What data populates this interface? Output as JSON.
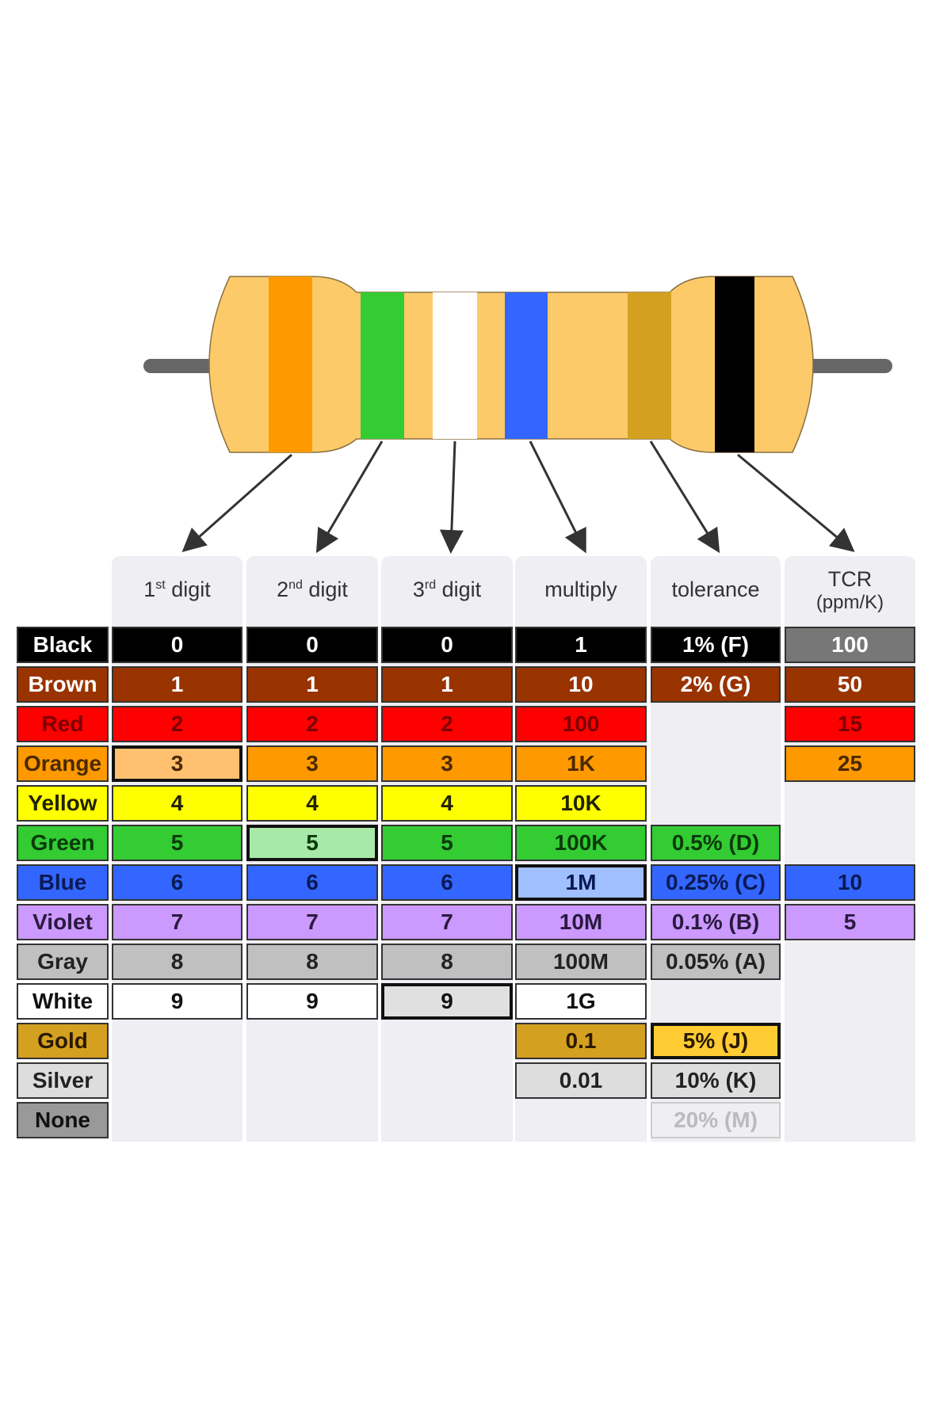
{
  "headers": [
    {
      "main": "1",
      "sup": "st",
      "rest": " digit"
    },
    {
      "main": "2",
      "sup": "nd",
      "rest": " digit"
    },
    {
      "main": "3",
      "sup": "rd",
      "rest": " digit"
    },
    {
      "main": "multiply",
      "sup": "",
      "rest": ""
    },
    {
      "main": "tolerance",
      "sup": "",
      "rest": ""
    },
    {
      "main": "TCR",
      "sup": "",
      "rest": "(ppm/K)"
    }
  ],
  "resistor_bands": [
    "#ff9900",
    "#33cc33",
    "#ffffff",
    "#3366ff",
    "#d4a020",
    "#000000"
  ],
  "rows": [
    {
      "label": "Black",
      "bg": "#000000",
      "fg": "#ffffff",
      "cells": [
        "0",
        "0",
        "0",
        "1",
        "1% (F)",
        "100"
      ]
    },
    {
      "label": "Brown",
      "bg": "#993300",
      "fg": "#ffffff",
      "cells": [
        "1",
        "1",
        "1",
        "10",
        "2% (G)",
        "50"
      ]
    },
    {
      "label": "Red",
      "bg": "#ff0000",
      "fg": "#7a0000",
      "cells": [
        "2",
        "2",
        "2",
        "100",
        null,
        "15"
      ]
    },
    {
      "label": "Orange",
      "bg": "#ff9900",
      "fg": "#4a2a00",
      "cells": [
        "3",
        "3",
        "3",
        "1K",
        null,
        "25"
      ]
    },
    {
      "label": "Yellow",
      "bg": "#ffff00",
      "fg": "#222200",
      "cells": [
        "4",
        "4",
        "4",
        "10K",
        null,
        null
      ]
    },
    {
      "label": "Green",
      "bg": "#33cc33",
      "fg": "#0a3a0a",
      "cells": [
        "5",
        "5",
        "5",
        "100K",
        "0.5% (D)",
        null
      ]
    },
    {
      "label": "Blue",
      "bg": "#3366ff",
      "fg": "#0a1a55",
      "cells": [
        "6",
        "6",
        "6",
        "1M",
        "0.25% (C)",
        "10"
      ]
    },
    {
      "label": "Violet",
      "bg": "#cc99ff",
      "fg": "#2a1a40",
      "cells": [
        "7",
        "7",
        "7",
        "10M",
        "0.1% (B)",
        "5"
      ]
    },
    {
      "label": "Gray",
      "bg": "#c0c0c0",
      "fg": "#222222",
      "cells": [
        "8",
        "8",
        "8",
        "100M",
        "0.05% (A)",
        null
      ]
    },
    {
      "label": "White",
      "bg": "#ffffff",
      "fg": "#111111",
      "cells": [
        "9",
        "9",
        "9",
        "1G",
        null,
        null
      ]
    },
    {
      "label": "Gold",
      "bg": "#d4a020",
      "fg": "#2a1a00",
      "cells": [
        null,
        null,
        null,
        "0.1",
        "5% (J)",
        null
      ]
    },
    {
      "label": "Silver",
      "bg": "#dddddd",
      "fg": "#222222",
      "cells": [
        null,
        null,
        null,
        "0.01",
        "10% (K)",
        null
      ]
    },
    {
      "label": "None",
      "bg": "#999999",
      "fg": "#111111",
      "cells": [
        null,
        null,
        null,
        null,
        "20% (M)",
        null
      ]
    }
  ],
  "highlights": [
    {
      "row": 3,
      "col": 0,
      "bg": "#ffc070"
    },
    {
      "row": 5,
      "col": 1,
      "bg": "#a8e8a8"
    },
    {
      "row": 9,
      "col": 2,
      "bg": "#e0e0e0"
    },
    {
      "row": 6,
      "col": 3,
      "bg": "#a0bfff"
    },
    {
      "row": 10,
      "col": 4,
      "bg": "#ffcc33"
    }
  ],
  "special": {
    "tcr_black_bg": "#777777",
    "none_tolerance_fg": "#bbbbbb",
    "none_tolerance_bg": "#eeeef3"
  }
}
